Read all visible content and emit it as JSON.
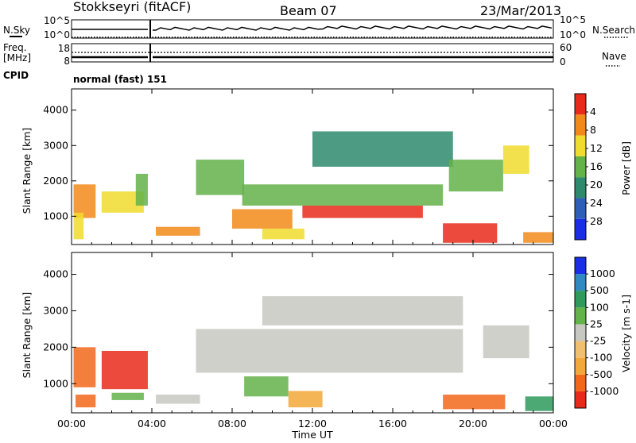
{
  "header": {
    "station": "Stokkseyri (fitACF)",
    "beam": "Beam 07",
    "date": "23/Mar/2013"
  },
  "strip_labels": {
    "nsky": "N.Sky",
    "nsky_top": "10^5",
    "nsky_bottom": "10^0",
    "nsearch": "N.Search",
    "nsearch_top": "10^5",
    "nsearch_bottom": "10^0",
    "freq": "Freq.",
    "freq_unit": "[MHz]",
    "freq_top": "18",
    "freq_bottom": "8",
    "nave": "Nave",
    "nave_top": "60",
    "nave_bottom": "0",
    "cpid": "CPID",
    "cpid_value": "normal (fast) 151"
  },
  "chart_data": [
    {
      "type": "heatmap",
      "title": "",
      "ylabel": "Slant Range [km]",
      "xlabel": "",
      "ylim": [
        200,
        4600
      ],
      "yticks": [
        "1000",
        "2000",
        "3000",
        "4000"
      ],
      "xlim_hours": [
        0,
        24
      ],
      "colorbar_label": "Power [dB]",
      "colorbar_ticks": [
        "4",
        "8",
        "12",
        "16",
        "20",
        "24",
        "28"
      ],
      "colors": [
        "#1a2ee6",
        "#2e5fb8",
        "#2e8a6c",
        "#64b24a",
        "#f0dc2e",
        "#f28a1a",
        "#e82a1a"
      ],
      "regions": [
        {
          "t0": 0.1,
          "t1": 1.2,
          "r0": 950,
          "r1": 1900,
          "level": 5
        },
        {
          "t0": 0.1,
          "t1": 0.6,
          "r0": 350,
          "r1": 1100,
          "level": 4
        },
        {
          "t0": 1.5,
          "t1": 3.6,
          "r0": 1100,
          "r1": 1700,
          "level": 4
        },
        {
          "t0": 3.2,
          "t1": 3.8,
          "r0": 1300,
          "r1": 2200,
          "level": 3
        },
        {
          "t0": 4.2,
          "t1": 6.4,
          "r0": 450,
          "r1": 700,
          "level": 5
        },
        {
          "t0": 6.2,
          "t1": 8.6,
          "r0": 1600,
          "r1": 2600,
          "level": 3
        },
        {
          "t0": 8.0,
          "t1": 11.0,
          "r0": 650,
          "r1": 1200,
          "level": 5
        },
        {
          "t0": 9.5,
          "t1": 11.6,
          "r0": 350,
          "r1": 650,
          "level": 4
        },
        {
          "t0": 8.5,
          "t1": 18.5,
          "r0": 1300,
          "r1": 1900,
          "level": 3
        },
        {
          "t0": 11.5,
          "t1": 17.5,
          "r0": 950,
          "r1": 1300,
          "level": 6
        },
        {
          "t0": 12.0,
          "t1": 19.0,
          "r0": 2400,
          "r1": 3400,
          "level": 2
        },
        {
          "t0": 18.5,
          "t1": 21.2,
          "r0": 250,
          "r1": 800,
          "level": 6
        },
        {
          "t0": 18.8,
          "t1": 21.5,
          "r0": 1700,
          "r1": 2600,
          "level": 3
        },
        {
          "t0": 21.5,
          "t1": 22.8,
          "r0": 2200,
          "r1": 3000,
          "level": 4
        },
        {
          "t0": 22.5,
          "t1": 24.0,
          "r0": 250,
          "r1": 550,
          "level": 5
        }
      ]
    },
    {
      "type": "heatmap",
      "title": "",
      "ylabel": "Slant Range [km]",
      "xlabel": "Time UT",
      "ylim": [
        200,
        4600
      ],
      "yticks": [
        "1000",
        "2000",
        "3000",
        "4000"
      ],
      "xticks": [
        "00:00",
        "04:00",
        "08:00",
        "12:00",
        "16:00",
        "20:00",
        "00:00"
      ],
      "xlim_hours": [
        0,
        24
      ],
      "colorbar_label": "Velocity [m s-1]",
      "colorbar_ticks": [
        "1000",
        "500",
        "100",
        "25",
        "-25",
        "-100",
        "-500",
        "-1000"
      ],
      "colors": [
        "#e82a1a",
        "#f2671a",
        "#f2a83a",
        "#f0c070",
        "#c8c8c2",
        "#64b24a",
        "#2e9a5c",
        "#2e8ac0",
        "#1a2ee6"
      ],
      "regions": [
        {
          "t0": 0.1,
          "t1": 1.2,
          "r0": 900,
          "r1": 2000,
          "level": 1
        },
        {
          "t0": 0.2,
          "t1": 1.2,
          "r0": 350,
          "r1": 700,
          "level": 1
        },
        {
          "t0": 1.5,
          "t1": 3.8,
          "r0": 850,
          "r1": 1900,
          "level": 0
        },
        {
          "t0": 2.0,
          "t1": 3.6,
          "r0": 550,
          "r1": 750,
          "level": 5
        },
        {
          "t0": 4.2,
          "t1": 6.4,
          "r0": 450,
          "r1": 700,
          "level": 4
        },
        {
          "t0": 6.2,
          "t1": 19.5,
          "r0": 1300,
          "r1": 2500,
          "level": 4
        },
        {
          "t0": 9.5,
          "t1": 19.5,
          "r0": 2600,
          "r1": 3400,
          "level": 4
        },
        {
          "t0": 8.6,
          "t1": 10.8,
          "r0": 650,
          "r1": 1200,
          "level": 5
        },
        {
          "t0": 10.8,
          "t1": 12.5,
          "r0": 350,
          "r1": 800,
          "level": 2
        },
        {
          "t0": 18.5,
          "t1": 21.6,
          "r0": 300,
          "r1": 700,
          "level": 1
        },
        {
          "t0": 20.5,
          "t1": 22.8,
          "r0": 1700,
          "r1": 2600,
          "level": 4
        },
        {
          "t0": 22.6,
          "t1": 24.0,
          "r0": 250,
          "r1": 650,
          "level": 6
        }
      ]
    }
  ]
}
